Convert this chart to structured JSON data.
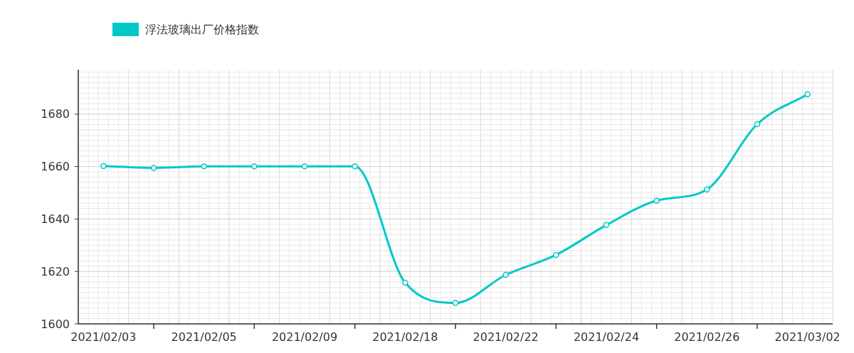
{
  "chart_data": {
    "type": "line",
    "categories": [
      "2021/02/03",
      null,
      "2021/02/05",
      null,
      "2021/02/09",
      null,
      "2021/02/18",
      null,
      "2021/02/22",
      null,
      "2021/02/24",
      null,
      "2021/02/26",
      null,
      "2021/03/02"
    ],
    "series": [
      {
        "name": "浮法玻璃出厂价格指数",
        "color": "#00c8c8",
        "values": [
          1660.2,
          1659.5,
          1660.1,
          1660.1,
          1660.1,
          1660.1,
          1615.7,
          1608,
          1618.7,
          1626.3,
          1637.7,
          1647,
          1651.3,
          1676.2,
          1687.6
        ]
      }
    ],
    "ylim": [
      1600,
      1697
    ],
    "yticks": [
      1600,
      1620,
      1640,
      1660,
      1680
    ],
    "grid": true,
    "legend": "top left",
    "marker": "circle",
    "line_style": "solid"
  }
}
